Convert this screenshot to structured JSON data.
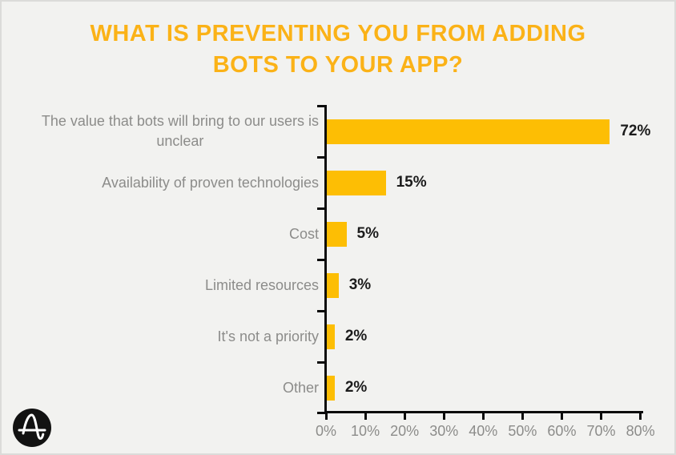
{
  "title": {
    "line1": "WHAT IS PREVENTING YOU FROM ADDING",
    "line2": "BOTS TO YOUR APP?"
  },
  "chart_data": {
    "type": "bar",
    "orientation": "horizontal",
    "title": "WHAT IS PREVENTING YOU FROM ADDING BOTS TO YOUR APP?",
    "categories": [
      "The value that bots will bring to our users is unclear",
      "Availability of proven technologies",
      "Cost",
      "Limited resources",
      "It's not a priority",
      "Other"
    ],
    "category_display_lines": [
      [
        "The value that bots will bring to our users is",
        "unclear"
      ],
      [
        "Availability of proven technologies"
      ],
      [
        "Cost"
      ],
      [
        "Limited resources"
      ],
      [
        "It's not a priority"
      ],
      [
        "Other"
      ]
    ],
    "values": [
      72,
      15,
      5,
      3,
      2,
      2
    ],
    "value_labels": [
      "72%",
      "15%",
      "5%",
      "3%",
      "2%",
      "2%"
    ],
    "x_tick_labels": [
      "0%",
      "10%",
      "20%",
      "30%",
      "40%",
      "50%",
      "60%",
      "70%",
      "80%"
    ],
    "x_tick_values": [
      0,
      10,
      20,
      30,
      40,
      50,
      60,
      70,
      80
    ],
    "xlim": [
      0,
      80
    ],
    "xlabel": "",
    "ylabel": "",
    "grid": false,
    "legend": false,
    "colors": {
      "bar": "#FDBE04",
      "title": "#FBB217",
      "axis": "#0b0b0b",
      "category_text": "#8C8C8A",
      "value_text": "#1c1c1c",
      "background": "#F2F2F0"
    }
  },
  "footer": {
    "logo_icon": "amplitude-logo"
  }
}
